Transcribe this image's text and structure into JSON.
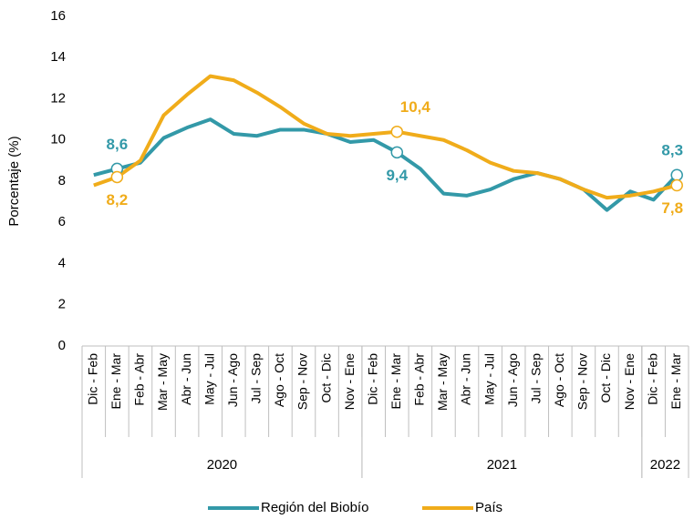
{
  "chart_data": {
    "type": "line",
    "y_label": "Porcentaje (%)",
    "categories": [
      "Dic - Feb",
      "Ene - Mar",
      "Feb - Abr",
      "Mar - May",
      "Abr - Jun",
      "May - Jul",
      "Jun - Ago",
      "Jul - Sep",
      "Ago - Oct",
      "Sep - Nov",
      "Oct - Dic",
      "Nov - Ene",
      "Dic - Feb",
      "Ene - Mar",
      "Feb - Abr",
      "Mar - May",
      "Abr - Jun",
      "May - Jul",
      "Jun - Ago",
      "Jul - Sep",
      "Ago - Oct",
      "Sep - Nov",
      "Oct - Dic",
      "Nov - Ene",
      "Dic - Feb",
      "Ene - Mar"
    ],
    "groups": [
      {
        "label": "2020",
        "size": 12
      },
      {
        "label": "2021",
        "size": 12
      },
      {
        "label": "2022",
        "size": 2
      }
    ],
    "series": [
      {
        "name": "Región del Biobío",
        "color": "#3399a8",
        "values": [
          8.3,
          8.6,
          8.9,
          10.1,
          10.6,
          11.0,
          10.3,
          10.2,
          10.5,
          10.5,
          10.3,
          9.9,
          10.0,
          9.4,
          8.6,
          7.4,
          7.3,
          7.6,
          8.1,
          8.4,
          8.1,
          7.6,
          6.6,
          7.5,
          7.1,
          8.3
        ],
        "value_labels": [
          null,
          "8,6",
          null,
          null,
          null,
          null,
          null,
          null,
          null,
          null,
          null,
          null,
          null,
          "9,4",
          null,
          null,
          null,
          null,
          null,
          null,
          null,
          null,
          null,
          null,
          null,
          "8,3"
        ]
      },
      {
        "name": "País",
        "color": "#f0ac1a",
        "values": [
          7.8,
          8.2,
          9.0,
          11.2,
          12.2,
          13.1,
          12.9,
          12.3,
          11.6,
          10.8,
          10.3,
          10.2,
          10.3,
          10.4,
          10.2,
          10.0,
          9.5,
          8.9,
          8.5,
          8.4,
          8.1,
          7.6,
          7.2,
          7.3,
          7.5,
          7.8
        ],
        "value_labels": [
          null,
          "8,2",
          null,
          null,
          null,
          null,
          null,
          null,
          null,
          null,
          null,
          null,
          null,
          "10,4",
          null,
          null,
          null,
          null,
          null,
          null,
          null,
          null,
          null,
          null,
          null,
          "7,8"
        ]
      }
    ],
    "ylim": [
      0,
      16
    ],
    "yticks": [
      0,
      2,
      4,
      6,
      8,
      10,
      12,
      14,
      16
    ],
    "grid": false,
    "legend": "bottom"
  }
}
